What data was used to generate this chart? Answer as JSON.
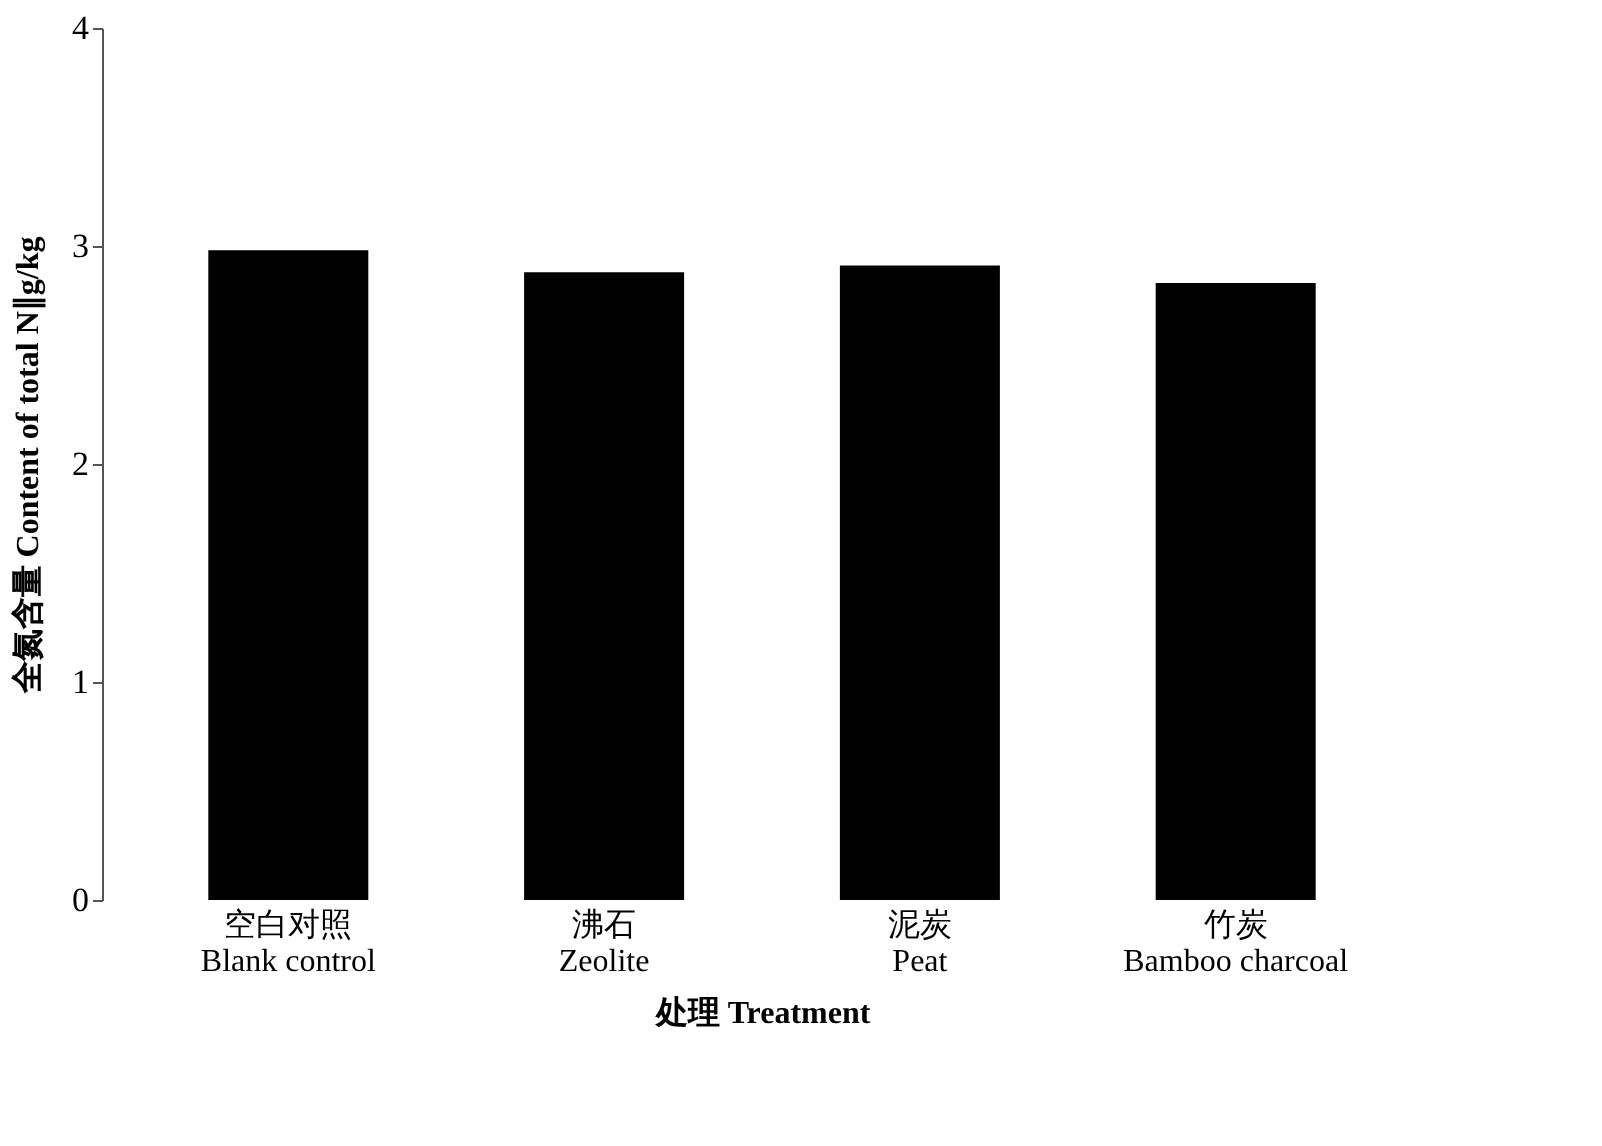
{
  "chart_data": {
    "type": "bar",
    "categories": [
      "空白对照\nBlank control",
      "沸石\nZeolite",
      "泥炭\nPeat",
      "竹炭\nBamboo charcoal"
    ],
    "values": [
      2.98,
      2.88,
      2.91,
      2.83
    ],
    "color": "#000000",
    "xlabel": "处理 Treatment",
    "ylabel": "全氮含量 Content of total N∥g/kg",
    "ylim": [
      0,
      4
    ],
    "yticks": [
      0,
      1,
      2,
      3,
      4
    ],
    "grid": false
  }
}
